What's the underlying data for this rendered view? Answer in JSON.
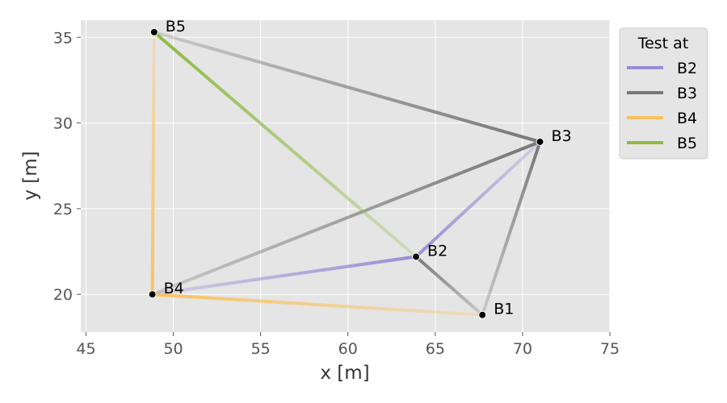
{
  "chart_data": {
    "type": "line",
    "xlabel": "x [m]",
    "ylabel": "y [m]",
    "xlim": [
      44.7,
      75.0
    ],
    "ylim": [
      17.8,
      36.0
    ],
    "xticks": [
      45,
      50,
      55,
      60,
      65,
      70,
      75
    ],
    "yticks": [
      20,
      25,
      30,
      35
    ],
    "grid": true,
    "legend_title": "Test at",
    "legend_position": "upper-right-outside",
    "points": [
      {
        "label": "B1",
        "x": 67.7,
        "y": 18.8
      },
      {
        "label": "B2",
        "x": 63.9,
        "y": 22.2
      },
      {
        "label": "B3",
        "x": 71.0,
        "y": 28.9
      },
      {
        "label": "B4",
        "x": 48.8,
        "y": 20.0
      },
      {
        "label": "B5",
        "x": 48.9,
        "y": 35.3
      }
    ],
    "series": [
      {
        "name": "B2",
        "color": "#988ED5",
        "from": "B2",
        "to": [
          "B1",
          "B3",
          "B4",
          "B5"
        ]
      },
      {
        "name": "B3",
        "color": "#777777",
        "from": "B3",
        "to": [
          "B1",
          "B2",
          "B4",
          "B5"
        ]
      },
      {
        "name": "B4",
        "color": "#FBC15E",
        "from": "B4",
        "to": [
          "B1",
          "B2",
          "B3",
          "B5"
        ]
      },
      {
        "name": "B5",
        "color": "#8EBA42",
        "from": "B5",
        "to": [
          "B1",
          "B2",
          "B3",
          "B4"
        ]
      }
    ],
    "drawn_segments": [
      {
        "from": "B2",
        "to": "B3",
        "color": "#988ED5"
      },
      {
        "from": "B2",
        "to": "B4",
        "color": "#988ED5"
      },
      {
        "from": "B3",
        "to": "B1",
        "color": "#777777"
      },
      {
        "from": "B3",
        "to": "B4",
        "color": "#777777"
      },
      {
        "from": "B3",
        "to": "B5",
        "color": "#777777"
      },
      {
        "from": "B4",
        "to": "B1",
        "color": "#FBC15E"
      },
      {
        "from": "B4",
        "to": "B5",
        "color": "#FBC15E"
      },
      {
        "from": "B5",
        "to": "B2",
        "color": "#8EBA42"
      },
      {
        "from": "B2",
        "to": "B1",
        "color": "#777777"
      }
    ],
    "colors": {
      "plot_background": "#E5E5E5",
      "grid": "#FFFFFF",
      "marker": "#000000"
    }
  }
}
